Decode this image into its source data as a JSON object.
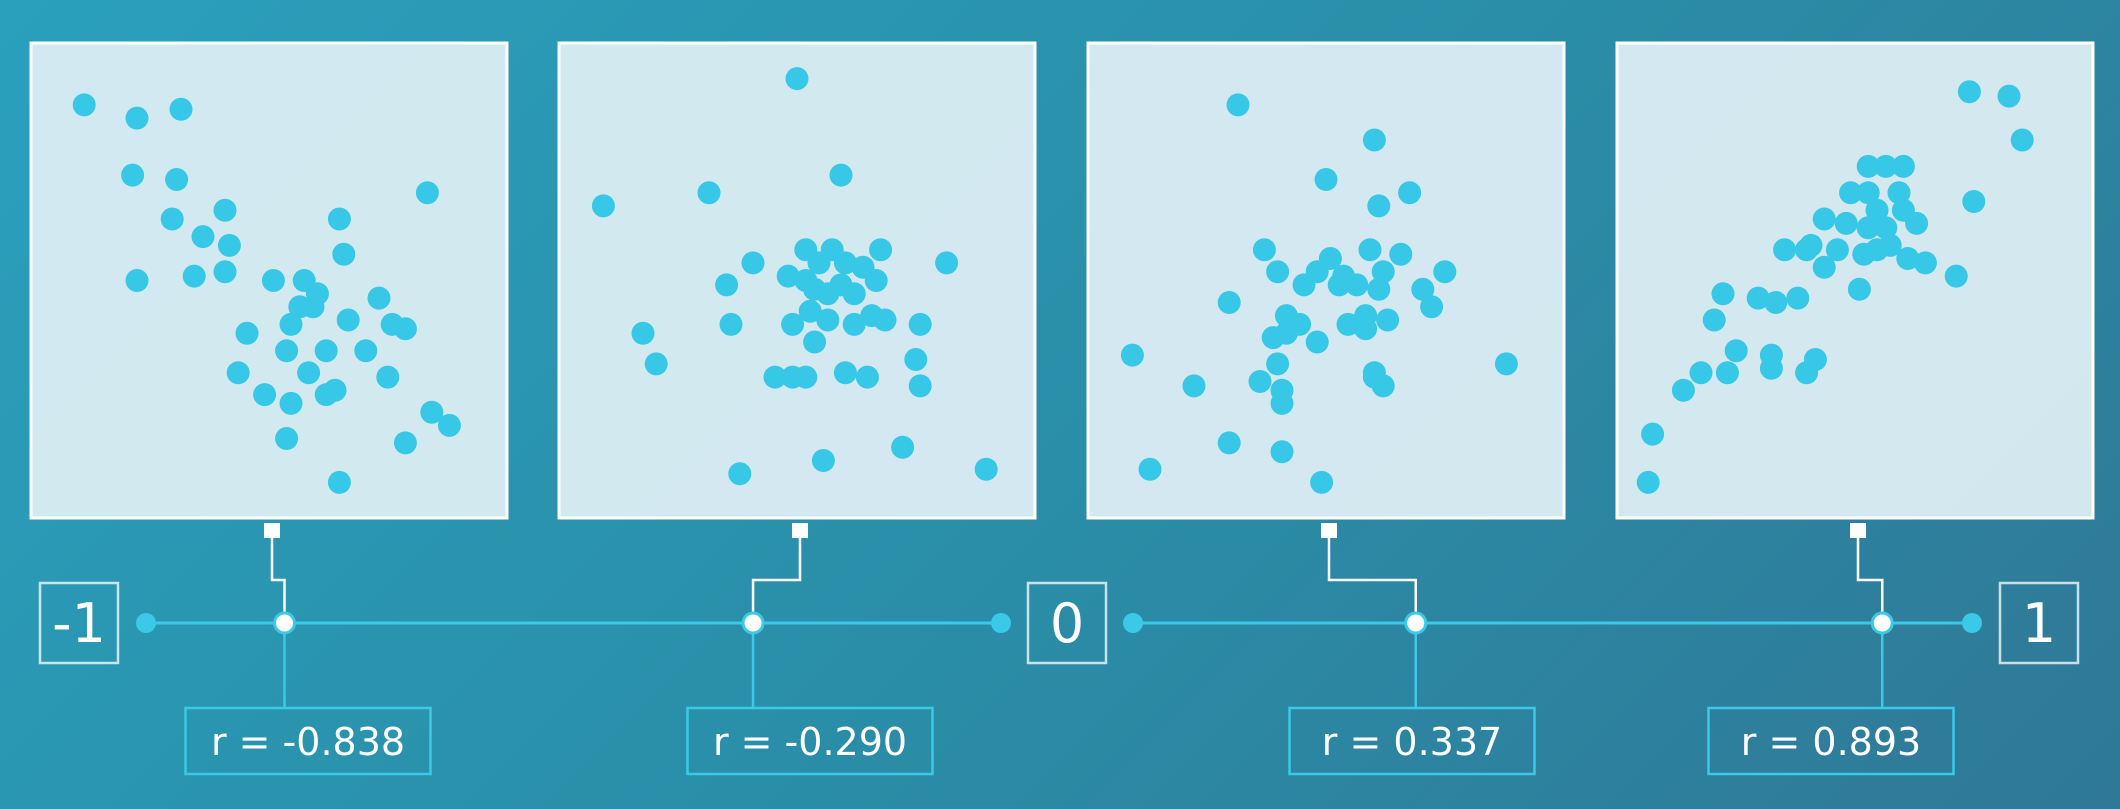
{
  "chart_data": [
    {
      "type": "scatter",
      "xlim": [
        0,
        100
      ],
      "ylim": [
        0,
        100
      ],
      "correlation_label": "r = -0.838",
      "r": -0.838,
      "points": [
        [
          8,
          90
        ],
        [
          20,
          87
        ],
        [
          30,
          89
        ],
        [
          19,
          74
        ],
        [
          29,
          73
        ],
        [
          28,
          64
        ],
        [
          40,
          66
        ],
        [
          35,
          60
        ],
        [
          41,
          58
        ],
        [
          20,
          50
        ],
        [
          33,
          51
        ],
        [
          40,
          52
        ],
        [
          51,
          50
        ],
        [
          58,
          50
        ],
        [
          61,
          47
        ],
        [
          66,
          64
        ],
        [
          67,
          56
        ],
        [
          75,
          46
        ],
        [
          57,
          44
        ],
        [
          60,
          44
        ],
        [
          55,
          40
        ],
        [
          68,
          41
        ],
        [
          54,
          34
        ],
        [
          63,
          34
        ],
        [
          45,
          38
        ],
        [
          72,
          34
        ],
        [
          78,
          40
        ],
        [
          81,
          39
        ],
        [
          86,
          70
        ],
        [
          43,
          29
        ],
        [
          59,
          29
        ],
        [
          77,
          28
        ],
        [
          49,
          24
        ],
        [
          63,
          24
        ],
        [
          65,
          25
        ],
        [
          87,
          20
        ],
        [
          55,
          22
        ],
        [
          91,
          17
        ],
        [
          54,
          14
        ],
        [
          81,
          13
        ],
        [
          66,
          4
        ]
      ]
    },
    {
      "type": "scatter",
      "xlim": [
        0,
        100
      ],
      "ylim": [
        0,
        100
      ],
      "correlation_label": "r = -0.290",
      "r": -0.29,
      "points": [
        [
          50,
          96
        ],
        [
          6,
          67
        ],
        [
          30,
          70
        ],
        [
          60,
          74
        ],
        [
          40,
          54
        ],
        [
          52,
          57
        ],
        [
          58,
          57
        ],
        [
          69,
          57
        ],
        [
          55,
          54
        ],
        [
          61,
          54
        ],
        [
          65,
          53
        ],
        [
          84,
          54
        ],
        [
          52,
          50
        ],
        [
          48,
          51
        ],
        [
          54,
          48
        ],
        [
          57,
          47
        ],
        [
          60,
          49
        ],
        [
          63,
          47
        ],
        [
          34,
          49
        ],
        [
          68,
          50
        ],
        [
          35,
          40
        ],
        [
          49,
          40
        ],
        [
          53,
          43
        ],
        [
          57,
          41
        ],
        [
          63,
          40
        ],
        [
          67,
          42
        ],
        [
          70,
          41
        ],
        [
          15,
          38
        ],
        [
          18,
          31
        ],
        [
          54,
          36
        ],
        [
          78,
          40
        ],
        [
          45,
          28
        ],
        [
          49,
          28
        ],
        [
          52,
          28
        ],
        [
          61,
          29
        ],
        [
          66,
          28
        ],
        [
          77,
          32
        ],
        [
          78,
          26
        ],
        [
          37,
          6
        ],
        [
          56,
          9
        ],
        [
          74,
          12
        ],
        [
          93,
          7
        ]
      ]
    },
    {
      "type": "scatter",
      "xlim": [
        0,
        100
      ],
      "ylim": [
        0,
        100
      ],
      "correlation_label": "r = 0.337",
      "r": 0.337,
      "points": [
        [
          30,
          90
        ],
        [
          61,
          82
        ],
        [
          50,
          73
        ],
        [
          69,
          70
        ],
        [
          62,
          67
        ],
        [
          36,
          57
        ],
        [
          48,
          52
        ],
        [
          51,
          55
        ],
        [
          54,
          51
        ],
        [
          53,
          49
        ],
        [
          57,
          49
        ],
        [
          60,
          57
        ],
        [
          63,
          52
        ],
        [
          67,
          56
        ],
        [
          39,
          52
        ],
        [
          45,
          49
        ],
        [
          62,
          48
        ],
        [
          72,
          48
        ],
        [
          77,
          52
        ],
        [
          28,
          45
        ],
        [
          41,
          42
        ],
        [
          44,
          40
        ],
        [
          55,
          40
        ],
        [
          59,
          42
        ],
        [
          64,
          41
        ],
        [
          74,
          44
        ],
        [
          38,
          37
        ],
        [
          41,
          38
        ],
        [
          59,
          39
        ],
        [
          48,
          36
        ],
        [
          39,
          31
        ],
        [
          61,
          29
        ],
        [
          6,
          33
        ],
        [
          20,
          26
        ],
        [
          35,
          27
        ],
        [
          40,
          25
        ],
        [
          61,
          28
        ],
        [
          63,
          26
        ],
        [
          91,
          31
        ],
        [
          40,
          22
        ],
        [
          28,
          13
        ],
        [
          40,
          11
        ],
        [
          49,
          4
        ],
        [
          10,
          7
        ]
      ]
    },
    {
      "type": "scatter",
      "xlim": [
        0,
        100
      ],
      "ylim": [
        0,
        100
      ],
      "correlation_label": "r = 0.893",
      "r": 0.893,
      "points": [
        [
          76,
          93
        ],
        [
          85,
          92
        ],
        [
          88,
          82
        ],
        [
          77,
          68
        ],
        [
          53,
          76
        ],
        [
          57,
          76
        ],
        [
          61,
          76
        ],
        [
          49,
          70
        ],
        [
          53,
          70
        ],
        [
          60,
          70
        ],
        [
          43,
          64
        ],
        [
          48,
          63
        ],
        [
          53,
          62
        ],
        [
          57,
          62
        ],
        [
          55,
          66
        ],
        [
          61,
          66
        ],
        [
          64,
          63
        ],
        [
          40,
          58
        ],
        [
          46,
          57
        ],
        [
          52,
          56
        ],
        [
          55,
          57
        ],
        [
          58,
          58
        ],
        [
          34,
          57
        ],
        [
          39,
          57
        ],
        [
          43,
          53
        ],
        [
          62,
          55
        ],
        [
          66,
          54
        ],
        [
          73,
          51
        ],
        [
          51,
          48
        ],
        [
          37,
          46
        ],
        [
          28,
          46
        ],
        [
          32,
          45
        ],
        [
          20,
          47
        ],
        [
          18,
          41
        ],
        [
          23,
          34
        ],
        [
          15,
          29
        ],
        [
          11,
          25
        ],
        [
          31,
          33
        ],
        [
          21,
          29
        ],
        [
          39,
          29
        ],
        [
          41,
          32
        ],
        [
          31,
          30
        ],
        [
          4,
          15
        ],
        [
          3,
          4
        ]
      ]
    }
  ],
  "scale": {
    "min_label": "-1",
    "mid_label": "0",
    "max_label": "1"
  },
  "colors": {
    "point": "#36c8e6",
    "panel": "#dcedf3",
    "line": "#3ac9e6",
    "frame": "#ffffff"
  }
}
